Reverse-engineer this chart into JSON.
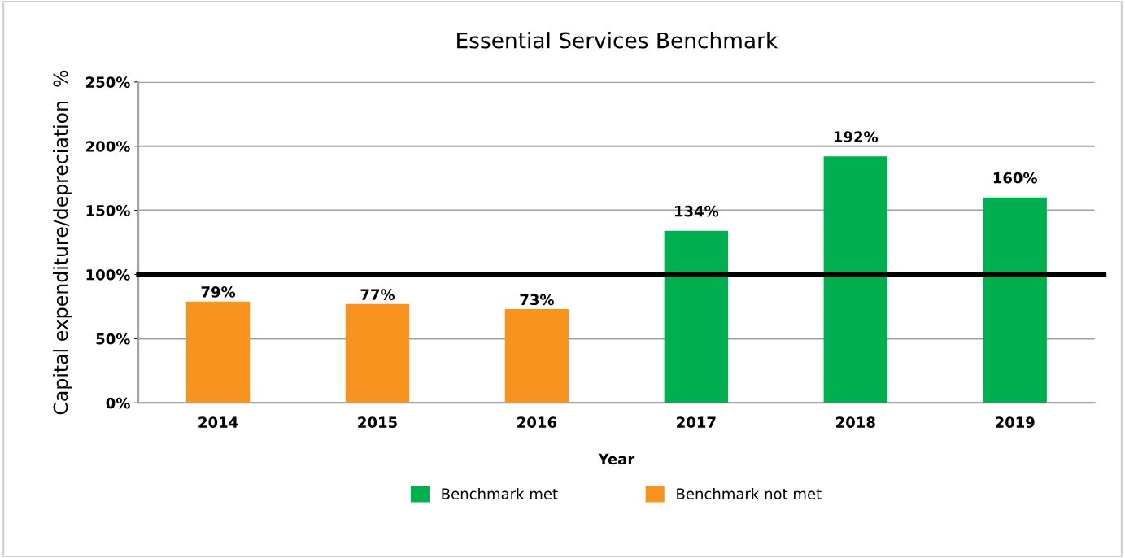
{
  "chart_data": {
    "type": "bar",
    "title": "Essential Services Benchmark",
    "xlabel": "Year",
    "ylabel": "Capital expenditure/depreciation  %",
    "categories": [
      "2014",
      "2015",
      "2016",
      "2017",
      "2018",
      "2019"
    ],
    "series": [
      {
        "name": "Benchmark met",
        "color": "#00b050",
        "values": [
          null,
          null,
          null,
          134,
          192,
          160
        ],
        "value_labels": [
          null,
          null,
          null,
          "134%",
          "192%",
          "160%"
        ]
      },
      {
        "name": "Benchmark not met",
        "color": "#f7931e",
        "values": [
          79,
          77,
          73,
          null,
          null,
          null
        ],
        "value_labels": [
          "79%",
          "77%",
          "73%",
          null,
          null,
          null
        ]
      }
    ],
    "ylim": [
      0,
      250
    ],
    "yticks": [
      {
        "value": 0,
        "label": "0%"
      },
      {
        "value": 50,
        "label": "50%"
      },
      {
        "value": 100,
        "label": "100%"
      },
      {
        "value": 150,
        "label": "150%"
      },
      {
        "value": 200,
        "label": "200%"
      },
      {
        "value": 250,
        "label": "250%"
      }
    ],
    "ref_lines": [
      {
        "axis": "y",
        "value": 100,
        "color": "#000000",
        "line_style": "solid"
      }
    ],
    "grid": "y",
    "legend": "bottom"
  }
}
